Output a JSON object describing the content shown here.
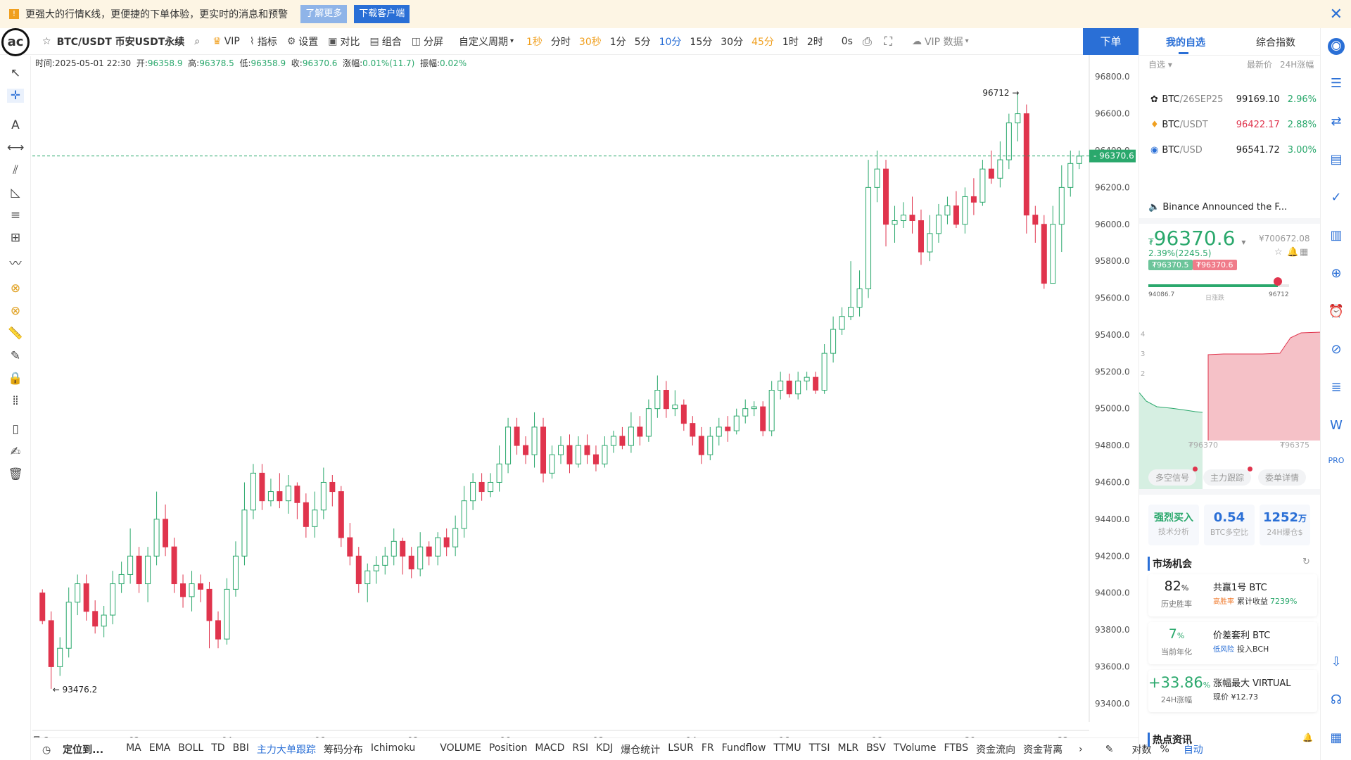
{
  "banner": {
    "text": "更强大的行情K线，更便捷的下单体验，更实时的消息和预警",
    "learn_more": "了解更多",
    "download": "下载客户端",
    "colors": {
      "learn_more": "#8fb4e8",
      "download": "#2a6fd6"
    }
  },
  "toolbar": {
    "symbol": "BTC/USDT 币安USDT永续",
    "vip": "VIP",
    "indicator": "指标",
    "settings": "设置",
    "compare": "对比",
    "combine": "组合",
    "split": "分屏",
    "custom_period": "自定义周期",
    "periods": [
      "1秒",
      "分时",
      "30秒",
      "1分",
      "5分",
      "10分",
      "15分",
      "30分",
      "45分",
      "1时",
      "2时"
    ],
    "period_colors": [
      "#f0a020",
      "#333333",
      "#f0a020",
      "#333333",
      "#333333",
      "#2a6fd6",
      "#333333",
      "#333333",
      "#f0a020",
      "#333333",
      "#333333"
    ],
    "countdown": "0s",
    "vip_data": "VIP 数据",
    "order_button": "下单"
  },
  "info": {
    "time": "时间:2025-05-01 22:30",
    "open_label": "开:",
    "open": "96358.9",
    "high_label": "高:",
    "high": "96378.5",
    "low_label": "低:",
    "low": "96358.9",
    "close_label": "收:",
    "close": "96370.6",
    "change_label": "涨幅:",
    "change": "0.01%(11.7)",
    "amp_label": "振幅:",
    "amp": "0.02%"
  },
  "chart_data": {
    "type": "candlestick",
    "ylim": [
      93300,
      96900
    ],
    "y_ticks": [
      "96800.0",
      "96600.0",
      "96400.0",
      "96200.0",
      "96000.0",
      "95800.0",
      "95600.0",
      "95400.0",
      "95200.0",
      "95000.0",
      "94800.0",
      "94600.0",
      "94400.0",
      "94200.0",
      "94000.0",
      "93800.0",
      "93600.0",
      "93400.0"
    ],
    "x_ticks": [
      "月 1",
      "02",
      "04",
      "06",
      "08",
      "10",
      "12",
      "14",
      "16",
      "18",
      "20",
      "22"
    ],
    "last_price": "96370.6",
    "max_label": "96712",
    "min_label": "93476.2",
    "colors": {
      "up": "#2aa86c",
      "down": "#e0344d",
      "last_price": "#2aa86c"
    },
    "candles": [
      [
        94000,
        93850,
        94020,
        93830
      ],
      [
        93850,
        93600,
        93900,
        93480
      ],
      [
        93600,
        93700,
        93760,
        93550
      ],
      [
        93700,
        93950,
        94030,
        93650
      ],
      [
        93950,
        94050,
        94100,
        93880
      ],
      [
        94050,
        93900,
        94100,
        93850
      ],
      [
        93900,
        93820,
        93960,
        93780
      ],
      [
        93820,
        93880,
        93930,
        93760
      ],
      [
        93880,
        94050,
        94120,
        93830
      ],
      [
        94050,
        94100,
        94170,
        94000
      ],
      [
        94100,
        94200,
        94350,
        94050
      ],
      [
        94200,
        94050,
        94250,
        94000
      ],
      [
        94050,
        94200,
        94250,
        93950
      ],
      [
        94200,
        94400,
        94550,
        94150
      ],
      [
        94400,
        94250,
        94480,
        94200
      ],
      [
        94250,
        94050,
        94300,
        94000
      ],
      [
        94050,
        93980,
        94100,
        93920
      ],
      [
        93980,
        94050,
        94120,
        93900
      ],
      [
        94050,
        94020,
        94100,
        93950
      ],
      [
        94020,
        93850,
        94060,
        93700
      ],
      [
        93850,
        93750,
        93900,
        93700
      ],
      [
        93750,
        94020,
        94080,
        93720
      ],
      [
        94020,
        94200,
        94280,
        93980
      ],
      [
        94200,
        94450,
        94600,
        94150
      ],
      [
        94450,
        94650,
        94700,
        94400
      ],
      [
        94650,
        94500,
        94700,
        94450
      ],
      [
        94500,
        94550,
        94620,
        94470
      ],
      [
        94550,
        94500,
        94650,
        94460
      ],
      [
        94500,
        94580,
        94640,
        94430
      ],
      [
        94580,
        94490,
        94600,
        94400
      ],
      [
        94490,
        94360,
        94540,
        94300
      ],
      [
        94360,
        94450,
        94550,
        94300
      ],
      [
        94450,
        94600,
        94680,
        94400
      ],
      [
        94600,
        94550,
        94640,
        94470
      ],
      [
        94550,
        94300,
        94580,
        94250
      ],
      [
        94300,
        94200,
        94380,
        94150
      ],
      [
        94200,
        94050,
        94250,
        94000
      ],
      [
        94050,
        94120,
        94160,
        93950
      ],
      [
        94120,
        94150,
        94200,
        94050
      ],
      [
        94150,
        94200,
        94250,
        94100
      ],
      [
        94200,
        94280,
        94350,
        94150
      ],
      [
        94280,
        94200,
        94300,
        94100
      ],
      [
        94200,
        94130,
        94250,
        94080
      ],
      [
        94130,
        94250,
        94330,
        94090
      ],
      [
        94250,
        94200,
        94280,
        94150
      ],
      [
        94200,
        94300,
        94330,
        94150
      ],
      [
        94300,
        94250,
        94350,
        94200
      ],
      [
        94250,
        94350,
        94420,
        94200
      ],
      [
        94350,
        94500,
        94580,
        94300
      ],
      [
        94500,
        94600,
        94650,
        94450
      ],
      [
        94600,
        94550,
        94650,
        94500
      ],
      [
        94550,
        94600,
        94650,
        94520
      ],
      [
        94600,
        94700,
        94800,
        94550
      ],
      [
        94700,
        94900,
        94950,
        94650
      ],
      [
        94900,
        94800,
        94950,
        94750
      ],
      [
        94800,
        94750,
        94850,
        94700
      ],
      [
        94750,
        94900,
        94980,
        94680
      ],
      [
        94900,
        94650,
        94950,
        94600
      ],
      [
        94650,
        94750,
        94800,
        94620
      ],
      [
        94750,
        94800,
        94850,
        94700
      ],
      [
        94800,
        94700,
        94860,
        94650
      ],
      [
        94700,
        94800,
        94850,
        94680
      ],
      [
        94800,
        94750,
        94860,
        94700
      ],
      [
        94750,
        94700,
        94800,
        94660
      ],
      [
        94700,
        94800,
        94850,
        94680
      ],
      [
        94800,
        94850,
        94880,
        94760
      ],
      [
        94850,
        94800,
        94900,
        94780
      ],
      [
        94800,
        94900,
        94980,
        94760
      ],
      [
        94900,
        94850,
        94960,
        94800
      ],
      [
        94850,
        95000,
        95050,
        94820
      ],
      [
        95000,
        95100,
        95180,
        94950
      ],
      [
        95100,
        95000,
        95150,
        94950
      ],
      [
        95000,
        95020,
        95100,
        94960
      ],
      [
        95020,
        94920,
        95050,
        94880
      ],
      [
        94920,
        94850,
        94960,
        94800
      ],
      [
        94850,
        94750,
        94900,
        94700
      ],
      [
        94750,
        94850,
        94900,
        94720
      ],
      [
        94850,
        94900,
        94950,
        94800
      ],
      [
        94900,
        94880,
        94960,
        94820
      ],
      [
        94880,
        94960,
        95000,
        94860
      ],
      [
        94960,
        95000,
        95050,
        94920
      ],
      [
        95000,
        95010,
        95040,
        94960
      ],
      [
        95010,
        94880,
        95040,
        94850
      ],
      [
        94880,
        95100,
        95150,
        94850
      ],
      [
        95100,
        95150,
        95200,
        95050
      ],
      [
        95150,
        95080,
        95190,
        95060
      ],
      [
        95080,
        95150,
        95200,
        95050
      ],
      [
        95150,
        95170,
        95200,
        95100
      ],
      [
        95170,
        95100,
        95200,
        95080
      ],
      [
        95100,
        95300,
        95350,
        95080
      ],
      [
        95300,
        95430,
        95500,
        95250
      ],
      [
        95430,
        95500,
        95550,
        95400
      ],
      [
        95500,
        95550,
        95800,
        95480
      ],
      [
        95550,
        95650,
        95750,
        95500
      ],
      [
        95650,
        96200,
        96350,
        95600
      ],
      [
        96200,
        96300,
        96400,
        96120
      ],
      [
        96300,
        96000,
        96350,
        95880
      ],
      [
        96000,
        96020,
        96100,
        95900
      ],
      [
        96020,
        96050,
        96120,
        95980
      ],
      [
        96050,
        96020,
        96150,
        95950
      ],
      [
        96020,
        95850,
        96080,
        95780
      ],
      [
        95850,
        95950,
        96050,
        95800
      ],
      [
        95950,
        96050,
        96110,
        95900
      ],
      [
        96050,
        96100,
        96150,
        96000
      ],
      [
        96100,
        96000,
        96180,
        95980
      ],
      [
        96000,
        96150,
        96200,
        95950
      ],
      [
        96150,
        96120,
        96250,
        96050
      ],
      [
        96120,
        96300,
        96350,
        96100
      ],
      [
        96300,
        96250,
        96400,
        96220
      ],
      [
        96250,
        96350,
        96450,
        96200
      ],
      [
        96350,
        96550,
        96600,
        96300
      ],
      [
        96550,
        96600,
        96712,
        96450
      ],
      [
        96600,
        96050,
        96650,
        95950
      ],
      [
        96050,
        96000,
        96100,
        95900
      ],
      [
        96000,
        95680,
        96050,
        95650
      ],
      [
        95680,
        96000,
        96100,
        95680
      ],
      [
        96000,
        96200,
        96320,
        95850
      ],
      [
        96200,
        96330,
        96400,
        96150
      ],
      [
        96330,
        96370,
        96400,
        96300
      ]
    ]
  },
  "watchlist": {
    "tab_mine": "我的自选",
    "tab_index": "综合指数",
    "filter": "自选",
    "col_price": "最新价",
    "col_change": "24H涨幅",
    "rows": [
      {
        "base": "BTC",
        "quote": "/26SEP25",
        "price": "99169.10",
        "change": "2.96%",
        "price_color": "#222222"
      },
      {
        "base": "BTC",
        "quote": "/USDT",
        "price": "96422.17",
        "change": "2.88%",
        "price_color": "#e0344d"
      },
      {
        "base": "BTC",
        "quote": "/USD",
        "price": "96541.72",
        "change": "3.00%",
        "price_color": "#222222"
      }
    ]
  },
  "news": {
    "text": "Binance Announced the F..."
  },
  "quote": {
    "currency": "₮",
    "price": "96370.6",
    "cny": "¥700672.08",
    "change": "2.39%(2245.5)",
    "bid": "₮96370.5",
    "ask": "₮96370.6",
    "low": "94086.7",
    "range_label": "日涨跌",
    "high": "96712",
    "range_position": 0.92,
    "depth_y": [
      "4",
      "3",
      "2"
    ],
    "depth_x_left": "₮96370",
    "depth_x_right": "₮96375",
    "buttons": [
      "多空信号",
      "主力跟踪",
      "委单详情"
    ]
  },
  "stats": [
    {
      "value": "强烈买入",
      "label": "技术分析"
    },
    {
      "value": "0.54",
      "label": "BTC多空比"
    },
    {
      "value": "1252",
      "unit": "万",
      "label": "24H爆仓$"
    }
  ],
  "market": {
    "title": "市场机会",
    "cards": [
      {
        "big": "82",
        "unit": "%",
        "sub": "历史胜率",
        "title": "共赢1号 BTC",
        "tag": "高胜率",
        "extra": "累计收益",
        "extra_value": "7239%"
      },
      {
        "big": "7",
        "unit": "%",
        "sub": "当前年化",
        "title": "价差套利 BTC",
        "tag": "低风险",
        "extra": "投入BCH",
        "extra_value": ""
      },
      {
        "big": "+33.86",
        "unit": "%",
        "sub": "24H涨幅",
        "title": "涨幅最大 VIRTUAL",
        "tag": "",
        "extra": "现价 ¥12.73",
        "extra_value": ""
      }
    ]
  },
  "hot": {
    "title": "热点资讯"
  },
  "bottom": {
    "locate": "定位到...",
    "indicators": [
      "MA",
      "EMA",
      "BOLL",
      "TD",
      "BBI",
      "主力大单跟踪",
      "筹码分布",
      "Ichimoku",
      "VOLUME",
      "Position",
      "MACD",
      "RSI",
      "KDJ",
      "爆仓统计",
      "LSUR",
      "FR",
      "Fundflow",
      "TTMU",
      "TTSI",
      "MLR",
      "BSV",
      "TVolume",
      "FTBS",
      "资金流向",
      "资金背离"
    ],
    "log": "对数",
    "pct": "%",
    "auto": "自动"
  }
}
